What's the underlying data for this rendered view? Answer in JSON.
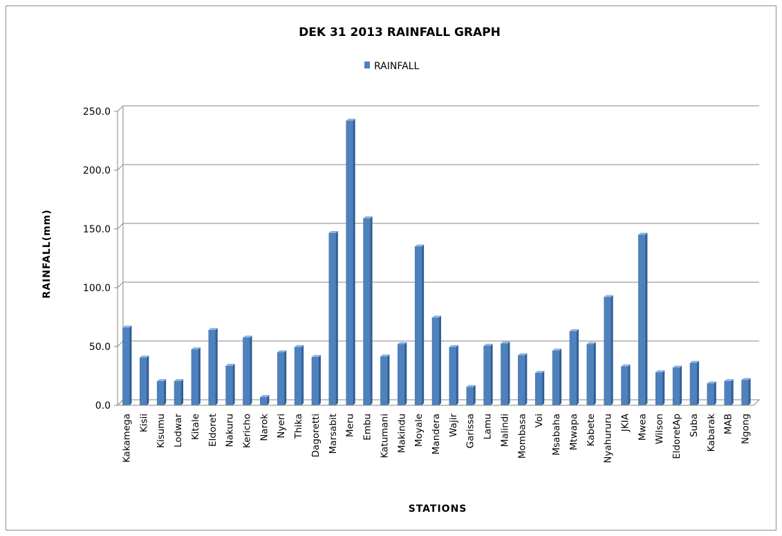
{
  "chart_data": {
    "type": "bar",
    "title": "DEK 31 2013 RAINFALL GRAPH",
    "xlabel": "STATIONS",
    "ylabel": "RAINFALL(mm)",
    "ylim": [
      0,
      250
    ],
    "yticks": [
      "0.0",
      "50.0",
      "100.0",
      "150.0",
      "200.0",
      "250.0"
    ],
    "grid": true,
    "legend_position": "top-center",
    "colors": {
      "bar": "#4f81bd",
      "bar_dark": "#2f5f96",
      "bar_light": "#8eb4e3",
      "grid": "#868686"
    },
    "categories": [
      "Kakamega",
      "Kisii",
      "Kisumu",
      "Lodwar",
      "Kitale",
      "Eldoret",
      "Nakuru",
      "Kericho",
      "Narok",
      "Nyeri",
      "Thika",
      "Dagoretti",
      "Marsabit",
      "Meru",
      "Embu",
      "Katumani",
      "Makindu",
      "Moyale",
      "Mandera",
      "Wajir",
      "Garissa",
      "Lamu",
      "Malindi",
      "Mombasa",
      "Voi",
      "Msabaha",
      "Mtwapa",
      "Kabete",
      "Nyahururu",
      "JKIA",
      "Mwea",
      "Wilson",
      "EldoretAp",
      "Suba",
      "Kabarak",
      "MAB",
      "Ngong"
    ],
    "series": [
      {
        "name": "RAINFALL",
        "values": [
          66.0,
          40.5,
          20.5,
          20.5,
          47.5,
          64.0,
          33.5,
          57.5,
          7.0,
          45.0,
          49.5,
          41.0,
          146.5,
          242.0,
          159.0,
          41.5,
          52.0,
          135.0,
          74.5,
          49.5,
          15.5,
          50.5,
          52.5,
          42.5,
          27.5,
          46.5,
          63.0,
          52.0,
          92.0,
          33.0,
          145.0,
          28.0,
          32.0,
          36.0,
          18.5,
          20.5,
          21.5
        ]
      }
    ]
  }
}
